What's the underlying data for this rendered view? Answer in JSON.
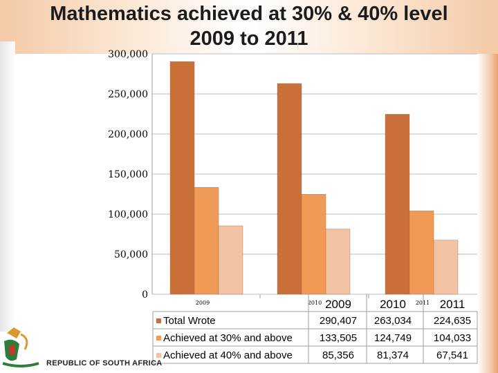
{
  "slide": {
    "title_line1": "Mathematics achieved at 30% & 40% level",
    "title_line2": "2009 to 2011",
    "footer": "REPUBLIC OF SOUTH AFRICA"
  },
  "colors": {
    "total_wrote": "#c9703a",
    "achieved_30": "#ef9a56",
    "achieved_40": "#f1c2a4"
  },
  "chart_data": {
    "type": "bar",
    "categories": [
      "2009",
      "2010",
      "2011"
    ],
    "series": [
      {
        "name": "Total Wrote",
        "values": [
          290407,
          263034,
          224635
        ]
      },
      {
        "name": "Achieved at 30% and above",
        "values": [
          133505,
          124749,
          104033
        ]
      },
      {
        "name": "Achieved at 40% and above",
        "values": [
          85356,
          81374,
          67541
        ]
      }
    ],
    "ylim": [
      0,
      300000
    ],
    "yticks": [
      "0",
      "50,000",
      "100,000",
      "150,000",
      "200,000",
      "250,000",
      "300,000"
    ],
    "table": {
      "headers": [
        "2009",
        "2010",
        "2011"
      ],
      "rows": [
        {
          "label": "Total Wrote",
          "cells": [
            "290,407",
            "263,034",
            "224,635"
          ]
        },
        {
          "label": "Achieved at 30% and above",
          "cells": [
            "133,505",
            "124,749",
            "104,033"
          ]
        },
        {
          "label": "Achieved at 40% and above",
          "cells": [
            "85,356",
            "81,374",
            "67,541"
          ]
        }
      ]
    },
    "legend": "data-table-below"
  }
}
